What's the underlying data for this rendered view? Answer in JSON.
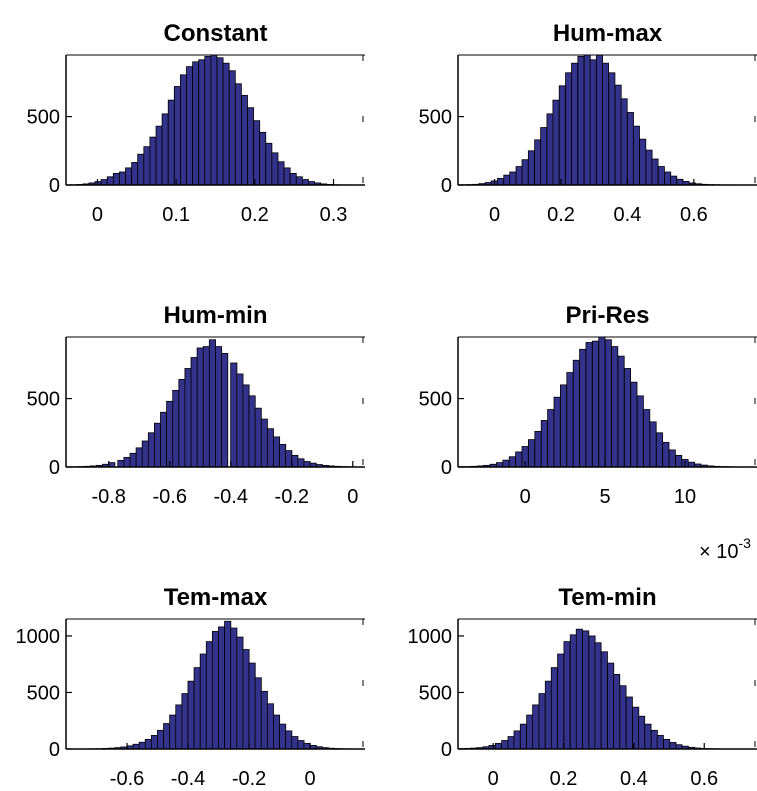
{
  "colors": {
    "bar_fill": "#33338c",
    "bar_edge": "#000000",
    "axes": "#000000"
  },
  "chart_data": [
    {
      "type": "bar",
      "title": "Constant",
      "xlim": [
        -0.04,
        0.34
      ],
      "ylim": [
        0,
        950
      ],
      "xticks": [
        0,
        0.1,
        0.2,
        0.3
      ],
      "xtick_labels": [
        "0",
        "0.1",
        "0.2",
        "0.3"
      ],
      "yticks": [
        0,
        500
      ],
      "ytick_labels": [
        "0",
        "500"
      ],
      "grid": false,
      "bin_width": 0.00775,
      "bin_centers": [
        -0.0302,
        -0.0225,
        -0.0147,
        -0.007,
        0.0008,
        0.0085,
        0.0163,
        0.024,
        0.0318,
        0.0395,
        0.0473,
        0.055,
        0.0628,
        0.0705,
        0.0783,
        0.086,
        0.0938,
        0.1015,
        0.1093,
        0.117,
        0.1248,
        0.1325,
        0.1403,
        0.148,
        0.1558,
        0.1635,
        0.1713,
        0.179,
        0.1868,
        0.1945,
        0.2023,
        0.21,
        0.2178,
        0.2255,
        0.2333,
        0.241,
        0.2488,
        0.2565,
        0.2643,
        0.272,
        0.2798,
        0.2875,
        0.2953,
        0.303,
        0.3108,
        0.3185,
        0.3263,
        0.334
      ],
      "values": [
        2,
        4,
        8,
        15,
        25,
        40,
        60,
        85,
        95,
        125,
        165,
        225,
        280,
        350,
        430,
        520,
        620,
        720,
        805,
        865,
        900,
        915,
        940,
        955,
        930,
        890,
        835,
        740,
        655,
        565,
        470,
        385,
        305,
        235,
        170,
        125,
        85,
        60,
        40,
        25,
        15,
        8,
        4,
        2,
        1,
        1,
        0,
        0
      ]
    },
    {
      "type": "bar",
      "title": "Hum-max",
      "xlim": [
        -0.11,
        0.79
      ],
      "ylim": [
        0,
        950
      ],
      "xticks": [
        0,
        0.2,
        0.4,
        0.6
      ],
      "xtick_labels": [
        "0",
        "0.2",
        "0.4",
        "0.6"
      ],
      "yticks": [
        0,
        500
      ],
      "ytick_labels": [
        "0",
        "500"
      ],
      "grid": false,
      "bin_width": 0.0186,
      "bin_centers": [
        -0.094,
        -0.075,
        -0.057,
        -0.038,
        -0.019,
        -0.001,
        0.018,
        0.037,
        0.055,
        0.074,
        0.092,
        0.111,
        0.13,
        0.148,
        0.167,
        0.185,
        0.204,
        0.223,
        0.241,
        0.26,
        0.279,
        0.297,
        0.316,
        0.334,
        0.353,
        0.372,
        0.39,
        0.409,
        0.427,
        0.446,
        0.465,
        0.483,
        0.502,
        0.521,
        0.539,
        0.558,
        0.576,
        0.595,
        0.614,
        0.632,
        0.651,
        0.669,
        0.688,
        0.707,
        0.725,
        0.744,
        0.763,
        0.781
      ],
      "values": [
        2,
        3,
        5,
        10,
        18,
        30,
        48,
        72,
        95,
        135,
        185,
        250,
        330,
        420,
        520,
        620,
        725,
        820,
        890,
        940,
        960,
        915,
        950,
        890,
        820,
        730,
        630,
        530,
        430,
        335,
        255,
        190,
        135,
        95,
        65,
        42,
        26,
        15,
        9,
        5,
        3,
        2,
        1,
        1,
        0,
        0,
        0,
        0
      ]
    },
    {
      "type": "bar",
      "title": "Hum-min",
      "xlim": [
        -0.94,
        0.04
      ],
      "ylim": [
        0,
        950
      ],
      "xticks": [
        -0.8,
        -0.6,
        -0.4,
        -0.2,
        0
      ],
      "xtick_labels": [
        "-0.8",
        "-0.6",
        "-0.4",
        "-0.2",
        "0"
      ],
      "yticks": [
        0,
        500
      ],
      "ytick_labels": [
        "0",
        "500"
      ],
      "grid": false,
      "bin_width": 0.0205,
      "bin_centers": [
        -0.93,
        -0.91,
        -0.89,
        -0.87,
        -0.85,
        -0.83,
        -0.81,
        -0.79,
        -0.76,
        -0.74,
        -0.72,
        -0.7,
        -0.68,
        -0.66,
        -0.64,
        -0.62,
        -0.6,
        -0.58,
        -0.56,
        -0.54,
        -0.52,
        -0.5,
        -0.48,
        -0.46,
        -0.44,
        -0.42,
        -0.39,
        -0.37,
        -0.35,
        -0.33,
        -0.31,
        -0.29,
        -0.27,
        -0.25,
        -0.23,
        -0.21,
        -0.19,
        -0.17,
        -0.15,
        -0.13,
        -0.11,
        -0.09,
        -0.07,
        -0.05,
        -0.03,
        -0.01,
        0.01,
        0.03
      ],
      "values": [
        1,
        2,
        3,
        5,
        8,
        12,
        20,
        32,
        48,
        70,
        100,
        140,
        190,
        250,
        320,
        400,
        480,
        560,
        640,
        720,
        800,
        870,
        880,
        930,
        880,
        830,
        760,
        680,
        600,
        520,
        430,
        350,
        280,
        220,
        165,
        120,
        85,
        60,
        40,
        28,
        18,
        12,
        8,
        5,
        3,
        2,
        1,
        0
      ]
    },
    {
      "type": "bar",
      "title": "Pri-Res",
      "xlim": [
        -4.2,
        14.5
      ],
      "ylim": [
        0,
        950
      ],
      "xticks": [
        0,
        5,
        10
      ],
      "xtick_labels": [
        "0",
        "5",
        "10"
      ],
      "yticks": [
        0,
        500
      ],
      "ytick_labels": [
        "0",
        "500"
      ],
      "grid": false,
      "axis_multiplier": "× 10",
      "axis_multiplier_exponent": "-3",
      "bin_width": 0.39,
      "bin_centers": [
        -4.0,
        -3.6,
        -3.2,
        -2.8,
        -2.4,
        -2.0,
        -1.6,
        -1.2,
        -0.8,
        -0.4,
        0.0,
        0.4,
        0.8,
        1.2,
        1.6,
        2.0,
        2.4,
        2.8,
        3.2,
        3.6,
        4.0,
        4.4,
        4.8,
        5.2,
        5.6,
        6.0,
        6.4,
        6.8,
        7.2,
        7.6,
        8.0,
        8.4,
        8.8,
        9.2,
        9.6,
        10.0,
        10.4,
        10.8,
        11.2,
        11.6,
        12.0,
        12.4,
        12.8,
        13.2,
        13.6,
        14.0,
        14.4,
        14.8
      ],
      "values": [
        2,
        3,
        5,
        8,
        12,
        20,
        32,
        50,
        75,
        110,
        150,
        200,
        260,
        340,
        420,
        510,
        600,
        690,
        780,
        860,
        910,
        920,
        950,
        930,
        880,
        810,
        720,
        620,
        520,
        420,
        330,
        250,
        180,
        125,
        85,
        55,
        35,
        22,
        14,
        8,
        5,
        3,
        2,
        1,
        0,
        0,
        0,
        0
      ]
    },
    {
      "type": "bar",
      "title": "Tem-max",
      "xlim": [
        -0.8,
        0.18
      ],
      "ylim": [
        0,
        1150
      ],
      "xticks": [
        -0.6,
        -0.4,
        -0.2,
        0
      ],
      "xtick_labels": [
        "-0.6",
        "-0.4",
        "-0.2",
        "0"
      ],
      "yticks": [
        0,
        500,
        1000
      ],
      "ytick_labels": [
        "0",
        "500",
        "1000"
      ],
      "grid": false,
      "bin_width": 0.0205,
      "bin_centers": [
        -0.79,
        -0.77,
        -0.75,
        -0.73,
        -0.71,
        -0.69,
        -0.67,
        -0.65,
        -0.63,
        -0.61,
        -0.59,
        -0.57,
        -0.55,
        -0.53,
        -0.51,
        -0.49,
        -0.47,
        -0.45,
        -0.43,
        -0.41,
        -0.39,
        -0.37,
        -0.35,
        -0.33,
        -0.31,
        -0.29,
        -0.27,
        -0.25,
        -0.23,
        -0.21,
        -0.19,
        -0.17,
        -0.15,
        -0.13,
        -0.11,
        -0.09,
        -0.07,
        -0.05,
        -0.03,
        -0.01,
        0.01,
        0.03,
        0.05,
        0.07,
        0.09,
        0.11,
        0.13,
        0.15
      ],
      "values": [
        0,
        0,
        1,
        1,
        2,
        3,
        5,
        8,
        12,
        18,
        28,
        42,
        60,
        85,
        120,
        165,
        225,
        300,
        390,
        490,
        600,
        720,
        840,
        950,
        1040,
        1080,
        1130,
        1070,
        990,
        880,
        760,
        630,
        510,
        400,
        300,
        220,
        160,
        110,
        75,
        50,
        32,
        20,
        12,
        7,
        4,
        2,
        1,
        0
      ]
    },
    {
      "type": "bar",
      "title": "Tem-min",
      "xlim": [
        -0.1,
        0.75
      ],
      "ylim": [
        0,
        1150
      ],
      "xticks": [
        0,
        0.2,
        0.4,
        0.6
      ],
      "xtick_labels": [
        "0",
        "0.2",
        "0.4",
        "0.6"
      ],
      "yticks": [
        0,
        500,
        1000
      ],
      "ytick_labels": [
        "0",
        "500",
        "1000"
      ],
      "grid": false,
      "bin_width": 0.0177,
      "bin_centers": [
        -0.091,
        -0.073,
        -0.056,
        -0.038,
        -0.02,
        -0.003,
        0.015,
        0.033,
        0.051,
        0.068,
        0.086,
        0.104,
        0.121,
        0.139,
        0.157,
        0.174,
        0.192,
        0.21,
        0.228,
        0.245,
        0.263,
        0.281,
        0.298,
        0.316,
        0.334,
        0.351,
        0.369,
        0.387,
        0.405,
        0.422,
        0.44,
        0.458,
        0.475,
        0.493,
        0.511,
        0.528,
        0.546,
        0.564,
        0.581,
        0.599,
        0.617,
        0.635,
        0.652,
        0.67,
        0.688,
        0.705,
        0.723,
        0.741
      ],
      "values": [
        3,
        5,
        8,
        12,
        20,
        32,
        50,
        75,
        110,
        160,
        220,
        300,
        390,
        490,
        600,
        720,
        840,
        950,
        1010,
        1060,
        1045,
        1000,
        940,
        860,
        760,
        660,
        560,
        460,
        370,
        290,
        220,
        165,
        120,
        85,
        58,
        38,
        25,
        15,
        9,
        5,
        3,
        2,
        1,
        1,
        0,
        0,
        0,
        0
      ]
    }
  ]
}
